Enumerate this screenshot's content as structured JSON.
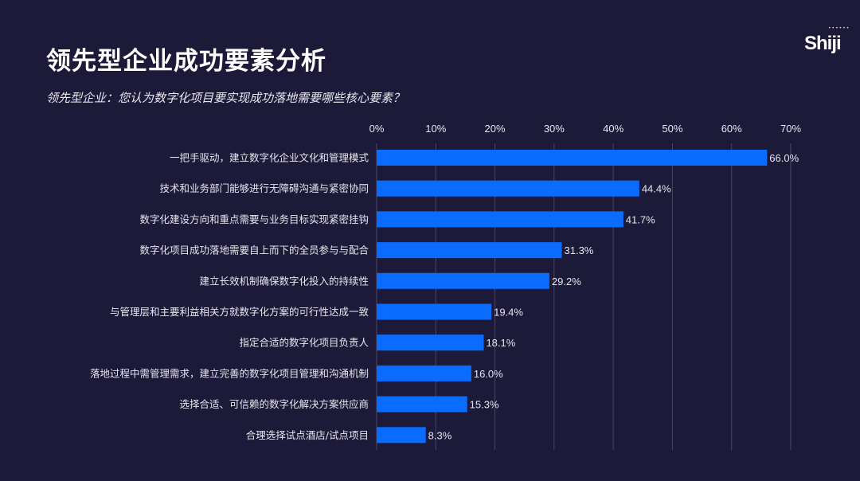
{
  "header": {
    "title": "领先型企业成功要素分析",
    "subtitle": "领先型企业：您认为数字化项目要实现成功落地需要哪些核心要素？",
    "logo": "Shiji"
  },
  "colors": {
    "background": "#1d1939",
    "bar": "#0a6cff",
    "grid": "#4a4668"
  },
  "chart_data": {
    "type": "bar",
    "orientation": "horizontal",
    "xlim": [
      0,
      70
    ],
    "x_ticks": [
      "0%",
      "10%",
      "20%",
      "30%",
      "40%",
      "50%",
      "60%",
      "70%"
    ],
    "x_axis_position": "top",
    "grid": true,
    "categories": [
      "一把手驱动，建立数字化企业文化和管理模式",
      "技术和业务部门能够进行无障碍沟通与紧密协同",
      "数字化建设方向和重点需要与业务目标实现紧密挂钩",
      "数字化项目成功落地需要自上而下的全员参与与配合",
      "建立长效机制确保数字化投入的持续性",
      "与管理层和主要利益相关方就数字化方案的可行性达成一致",
      "指定合适的数字化项目负责人",
      "落地过程中需管理需求，建立完善的数字化项目管理和沟通机制",
      "选择合适、可信赖的数字化解决方案供应商",
      "合理选择试点酒店/试点项目"
    ],
    "values": [
      66.0,
      44.4,
      41.7,
      31.3,
      29.2,
      19.4,
      18.1,
      16.0,
      15.3,
      8.3
    ],
    "labels": [
      "66.0%",
      "44.4%",
      "41.7%",
      "31.3%",
      "29.2%",
      "19.4%",
      "18.1%",
      "16.0%",
      "15.3%",
      "8.3%"
    ]
  }
}
